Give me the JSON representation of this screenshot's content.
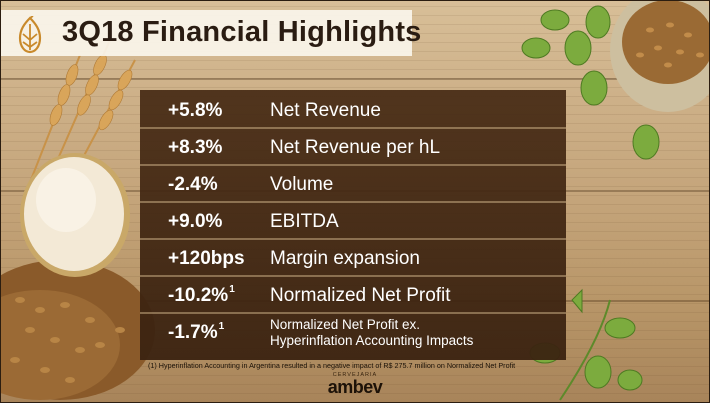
{
  "slide": {
    "title": "3Q18 Financial Highlights",
    "rows": [
      {
        "value": "+5.8%",
        "footnote_mark": "",
        "label": "Net Revenue",
        "label_line2": ""
      },
      {
        "value": "+8.3%",
        "footnote_mark": "",
        "label": "Net Revenue per hL",
        "label_line2": ""
      },
      {
        "value": "-2.4%",
        "footnote_mark": "",
        "label": "Volume",
        "label_line2": ""
      },
      {
        "value": "+9.0%",
        "footnote_mark": "",
        "label": "EBITDA",
        "label_line2": ""
      },
      {
        "value": "+120bps",
        "footnote_mark": "",
        "label": "Margin expansion",
        "label_line2": ""
      },
      {
        "value": "-10.2%",
        "footnote_mark": "1",
        "label": "Normalized Net Profit",
        "label_line2": ""
      },
      {
        "value": "-1.7%",
        "footnote_mark": "1",
        "label": "Normalized Net Profit ex.",
        "label_line2": "Hyperinflation Accounting Impacts"
      }
    ],
    "footnote": "(1) Hyperinflation Accounting  in Argentina resulted in a negative impact of R$ 275.7 million  on Normalized  Net Profit",
    "brand_sub": "CERVEJARIA",
    "brand_name": "ambev"
  },
  "colors": {
    "panel": "#46291a",
    "title_text": "#2a1c12",
    "metric_text": "#ffffff"
  },
  "icons": [
    "hop-logo-icon",
    "wheat-illustration",
    "beer-glass-illustration",
    "hops-illustration",
    "grain-sack-illustration"
  ]
}
